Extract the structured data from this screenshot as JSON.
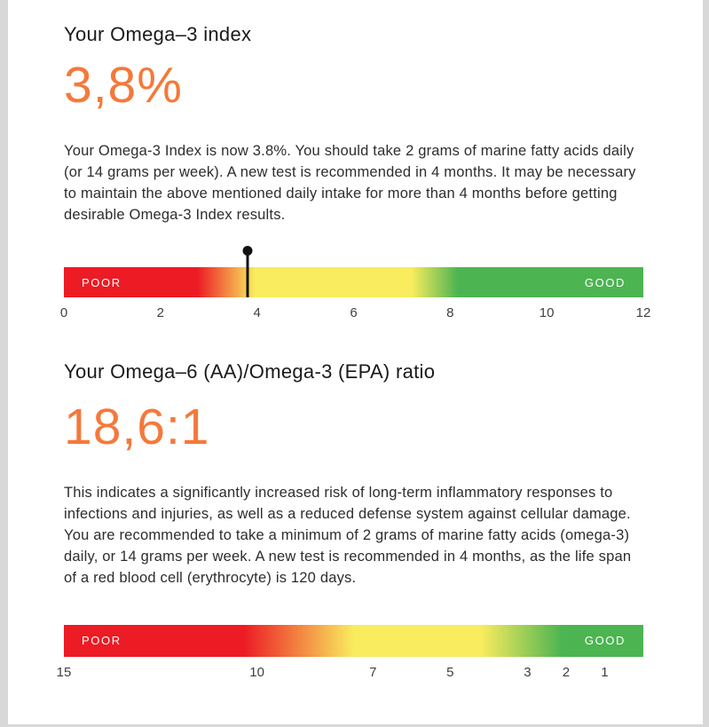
{
  "sections": [
    {
      "title": "Your Omega–3 index",
      "value": "3,8%",
      "description": "Your Omega-3 Index is now 3.8%. You should take 2 grams of marine fatty acids daily (or 14 grams per week). A new test is recommended in 4 months. It may be necessary to maintain the above mentioned daily intake for more than 4 months before getting desirable Omega-3 Index results.",
      "gauge": {
        "type": "linear-gauge",
        "poor_label": "POOR",
        "good_label": "GOOD",
        "scale_min": 0,
        "scale_max": 12,
        "ticks": [
          {
            "label": "0",
            "pct": 0
          },
          {
            "label": "2",
            "pct": 16.67
          },
          {
            "label": "4",
            "pct": 33.33
          },
          {
            "label": "6",
            "pct": 50
          },
          {
            "label": "8",
            "pct": 66.67
          },
          {
            "label": "10",
            "pct": 83.33
          },
          {
            "label": "12",
            "pct": 100
          }
        ],
        "marker": {
          "value": 3.8,
          "pct": 31.67
        }
      }
    },
    {
      "title": "Your Omega–6 (AA)/Omega-3 (EPA) ratio",
      "value": "18,6:1",
      "description": "This indicates a significantly increased risk of long-term inflammatory responses to infections and injuries, as well as a reduced defense system against cellular damage. You are recommended to take a minimum of 2 grams of marine fatty acids (omega-3) daily, or 14 grams per week. A new test is recommended in 4 months, as the life span of a red blood cell (erythrocyte) is 120 days.",
      "gauge": {
        "type": "linear-gauge",
        "poor_label": "POOR",
        "good_label": "GOOD",
        "scale_min": 15,
        "scale_max": 0,
        "ticks": [
          {
            "label": "15",
            "pct": 0
          },
          {
            "label": "10",
            "pct": 33.33
          },
          {
            "label": "7",
            "pct": 53.33
          },
          {
            "label": "5",
            "pct": 66.67
          },
          {
            "label": "3",
            "pct": 80
          },
          {
            "label": "2",
            "pct": 86.67
          },
          {
            "label": "1",
            "pct": 93.33
          }
        ],
        "marker": null
      }
    }
  ],
  "colors": {
    "accent_orange": "#f4793b",
    "gauge_red": "#ec1b24",
    "gauge_yellow": "#f9ec5e",
    "gauge_green": "#4cb451",
    "page_gutter_gray": "#d8d8d8"
  }
}
